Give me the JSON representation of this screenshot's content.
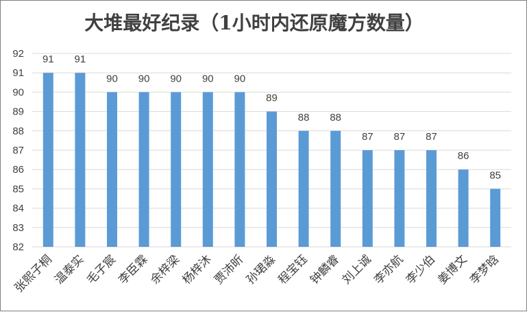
{
  "chart_data": {
    "type": "bar",
    "title": "大堆最好纪录（1小时内还原魔方数量）",
    "categories": [
      "张熙子桐",
      "温泰实",
      "毛子宸",
      "李臣霖",
      "余梓梁",
      "杨梓沐",
      "贾沛昕",
      "孙珺淼",
      "程宝钰",
      "钟麟睿",
      "刘上诚",
      "李亦航",
      "李少伯",
      "姜博文",
      "李梦晗"
    ],
    "values": [
      91,
      91,
      90,
      90,
      90,
      90,
      90,
      89,
      88,
      88,
      87,
      87,
      87,
      86,
      85
    ],
    "ylim": [
      82,
      92
    ],
    "yticks": [
      "82",
      "83",
      "84",
      "85",
      "86",
      "87",
      "88",
      "89",
      "90",
      "91",
      "92"
    ],
    "grid": true,
    "bar_color": "#5b9bd5",
    "data_labels": true
  }
}
